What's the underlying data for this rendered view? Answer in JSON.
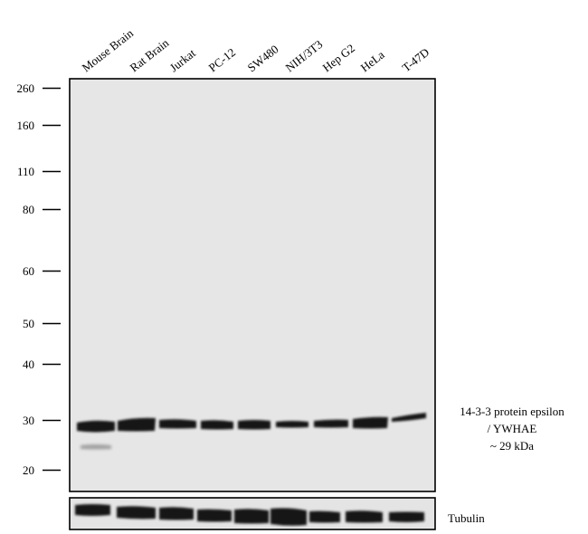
{
  "blot": {
    "lanes": [
      "Mouse Brain",
      "Rat Brain",
      "Jurkat",
      "PC-12",
      "SW480",
      "NIH/3T3",
      "Hep G2",
      "HeLa",
      "T-47D"
    ],
    "markers": [
      "260",
      "160",
      "110",
      "80",
      "60",
      "50",
      "40",
      "30",
      "20"
    ],
    "target_label": {
      "line1": "14-3-3  protein epsilon",
      "line2": "/ YWHAE",
      "line3": "~ 29 kDa"
    },
    "loading_control_label": "Tubulin",
    "colors": {
      "main_panel_bg": "#e6e6e6",
      "tubulin_panel_bg": "#e4e4e4",
      "band": "#141414"
    }
  }
}
